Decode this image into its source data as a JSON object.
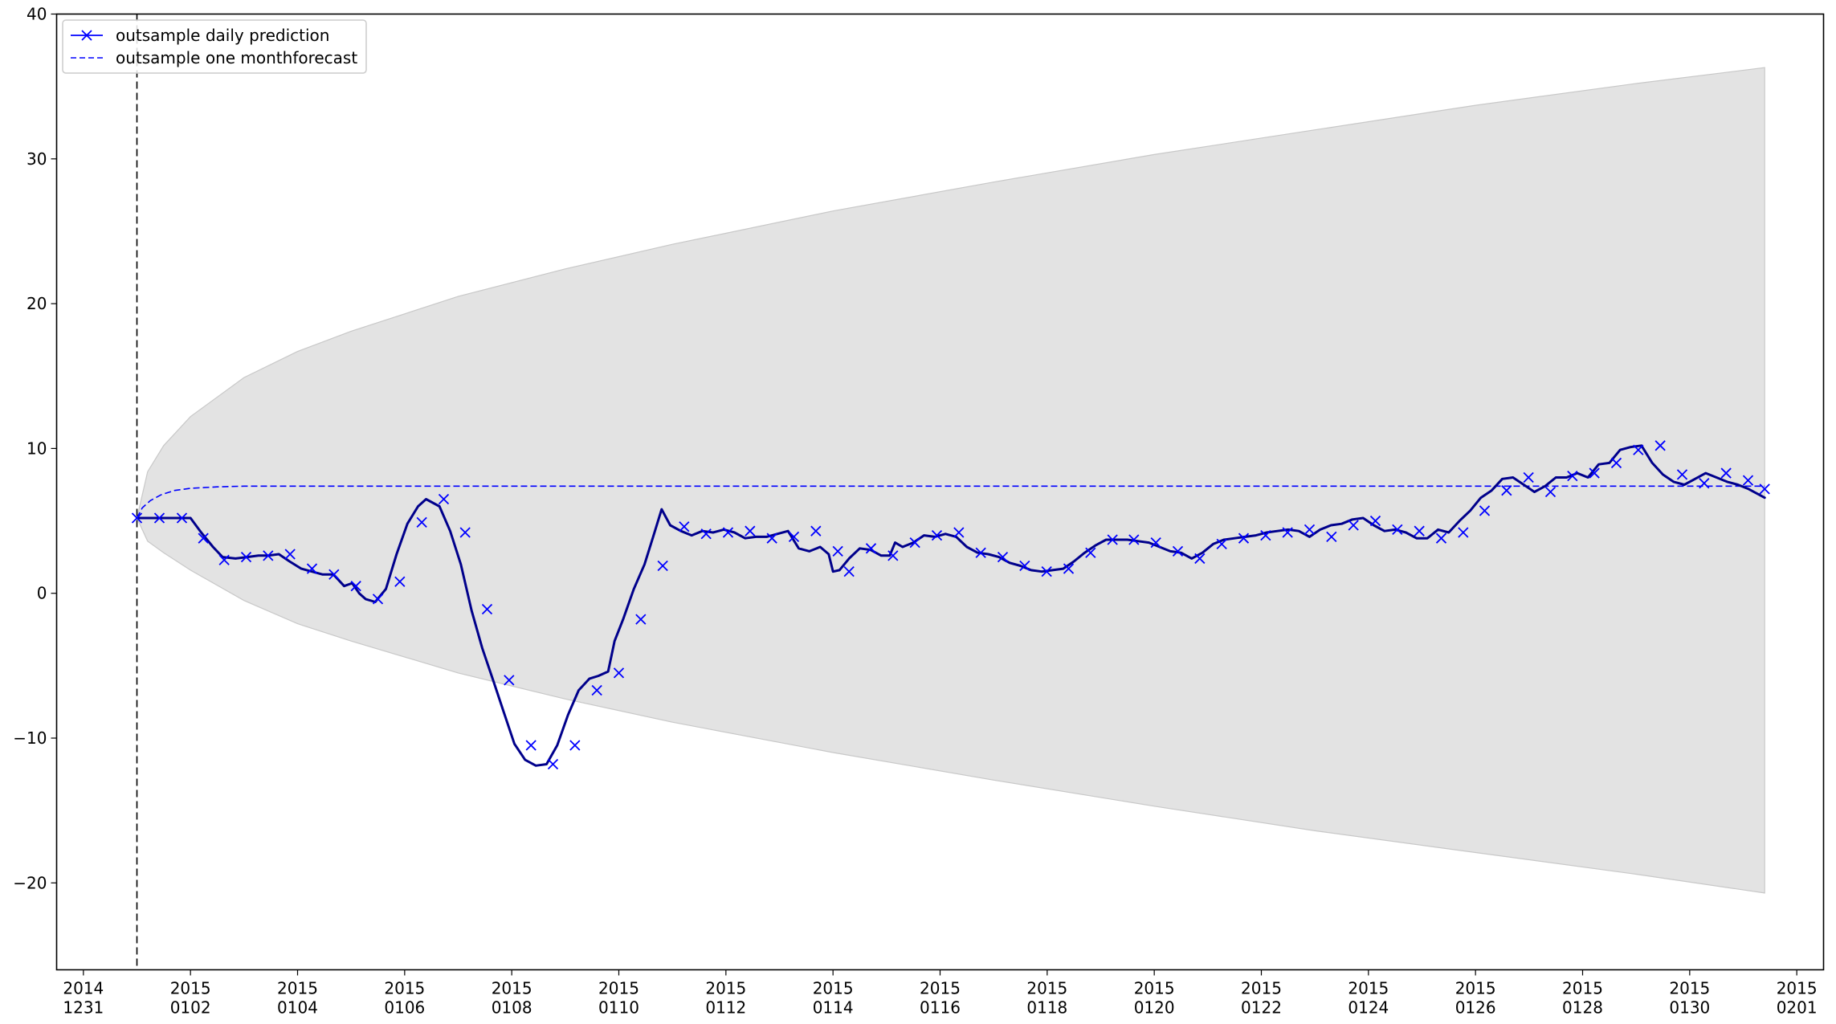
{
  "chart_data": {
    "type": "line",
    "title": "",
    "xlabel": "",
    "ylabel": "",
    "xlim": [
      -0.5,
      32.5
    ],
    "ylim": [
      -26,
      40
    ],
    "grid": false,
    "legend_placement": "top-left",
    "colors": {
      "prediction": "#0000ff",
      "prediction_line": "#00008b",
      "forecast": "#0000ff",
      "band_fill": "#e3e3e3",
      "band_edge": "#c8c8c8",
      "vline": "#000000"
    },
    "x_ticks": [
      {
        "day": 0,
        "label": [
          "2014",
          "1231"
        ]
      },
      {
        "day": 2,
        "label": [
          "2015",
          "0102"
        ]
      },
      {
        "day": 4,
        "label": [
          "2015",
          "0104"
        ]
      },
      {
        "day": 6,
        "label": [
          "2015",
          "0106"
        ]
      },
      {
        "day": 8,
        "label": [
          "2015",
          "0108"
        ]
      },
      {
        "day": 10,
        "label": [
          "2015",
          "0110"
        ]
      },
      {
        "day": 12,
        "label": [
          "2015",
          "0112"
        ]
      },
      {
        "day": 14,
        "label": [
          "2015",
          "0114"
        ]
      },
      {
        "day": 16,
        "label": [
          "2015",
          "0116"
        ]
      },
      {
        "day": 18,
        "label": [
          "2015",
          "0118"
        ]
      },
      {
        "day": 20,
        "label": [
          "2015",
          "0120"
        ]
      },
      {
        "day": 22,
        "label": [
          "2015",
          "0122"
        ]
      },
      {
        "day": 24,
        "label": [
          "2015",
          "0124"
        ]
      },
      {
        "day": 26,
        "label": [
          "2015",
          "0126"
        ]
      },
      {
        "day": 28,
        "label": [
          "2015",
          "0128"
        ]
      },
      {
        "day": 30,
        "label": [
          "2015",
          "0130"
        ]
      },
      {
        "day": 32,
        "label": [
          "2015",
          "0201"
        ]
      }
    ],
    "y_ticks": [
      -20,
      -10,
      0,
      10,
      20,
      30,
      40
    ],
    "y_tick_labels": [
      "−20",
      "−10",
      "0",
      "10",
      "20",
      "30",
      "40"
    ],
    "vline_x": 1.0,
    "series": [
      {
        "name": "outsample daily prediction",
        "style": "line-x-marker",
        "points": [
          [
            1.0,
            5.2
          ],
          [
            1.2,
            5.2
          ],
          [
            1.42,
            5.2
          ],
          [
            1.62,
            5.2
          ],
          [
            1.84,
            5.2
          ],
          [
            2.0,
            5.2
          ],
          [
            2.2,
            4.2
          ],
          [
            2.42,
            3.2
          ],
          [
            2.6,
            2.5
          ],
          [
            2.84,
            2.4
          ],
          [
            3.06,
            2.5
          ],
          [
            3.27,
            2.6
          ],
          [
            3.45,
            2.6
          ],
          [
            3.65,
            2.7
          ],
          [
            3.85,
            2.2
          ],
          [
            4.07,
            1.7
          ],
          [
            4.27,
            1.5
          ],
          [
            4.47,
            1.3
          ],
          [
            4.67,
            1.3
          ],
          [
            4.87,
            0.5
          ],
          [
            5.02,
            0.7
          ],
          [
            5.15,
            0.0
          ],
          [
            5.27,
            -0.4
          ],
          [
            5.45,
            -0.6
          ],
          [
            5.65,
            0.3
          ],
          [
            5.85,
            2.7
          ],
          [
            6.05,
            4.8
          ],
          [
            6.25,
            6.0
          ],
          [
            6.4,
            6.5
          ],
          [
            6.65,
            6.0
          ],
          [
            6.85,
            4.3
          ],
          [
            7.05,
            2.0
          ],
          [
            7.25,
            -1.2
          ],
          [
            7.45,
            -3.8
          ],
          [
            7.67,
            -6.2
          ],
          [
            7.85,
            -8.2
          ],
          [
            8.05,
            -10.4
          ],
          [
            8.25,
            -11.5
          ],
          [
            8.45,
            -11.9
          ],
          [
            8.65,
            -11.8
          ],
          [
            8.85,
            -10.5
          ],
          [
            9.05,
            -8.4
          ],
          [
            9.25,
            -6.7
          ],
          [
            9.45,
            -5.9
          ],
          [
            9.62,
            -5.7
          ],
          [
            9.8,
            -5.4
          ],
          [
            9.92,
            -3.3
          ],
          [
            10.08,
            -1.8
          ],
          [
            10.28,
            0.3
          ],
          [
            10.48,
            2.0
          ],
          [
            10.65,
            4.0
          ],
          [
            10.8,
            5.8
          ],
          [
            10.96,
            4.7
          ],
          [
            11.16,
            4.3
          ],
          [
            11.36,
            4.0
          ],
          [
            11.56,
            4.3
          ],
          [
            11.76,
            4.2
          ],
          [
            11.96,
            4.4
          ],
          [
            12.16,
            4.2
          ],
          [
            12.36,
            3.8
          ],
          [
            12.56,
            3.9
          ],
          [
            12.76,
            3.9
          ],
          [
            12.96,
            4.1
          ],
          [
            13.16,
            4.3
          ],
          [
            13.36,
            3.1
          ],
          [
            13.56,
            2.9
          ],
          [
            13.76,
            3.2
          ],
          [
            13.92,
            2.7
          ],
          [
            14.0,
            1.5
          ],
          [
            14.12,
            1.6
          ],
          [
            14.3,
            2.4
          ],
          [
            14.5,
            3.1
          ],
          [
            14.7,
            3.0
          ],
          [
            14.9,
            2.6
          ],
          [
            15.06,
            2.6
          ],
          [
            15.16,
            3.5
          ],
          [
            15.3,
            3.2
          ],
          [
            15.5,
            3.5
          ],
          [
            15.7,
            4.0
          ],
          [
            15.9,
            3.9
          ],
          [
            16.1,
            4.1
          ],
          [
            16.3,
            3.9
          ],
          [
            16.5,
            3.2
          ],
          [
            16.7,
            2.8
          ],
          [
            16.9,
            2.7
          ],
          [
            17.1,
            2.5
          ],
          [
            17.3,
            2.1
          ],
          [
            17.5,
            1.9
          ],
          [
            17.7,
            1.6
          ],
          [
            17.9,
            1.5
          ],
          [
            18.1,
            1.6
          ],
          [
            18.3,
            1.7
          ],
          [
            18.5,
            2.2
          ],
          [
            18.7,
            2.8
          ],
          [
            18.9,
            3.3
          ],
          [
            19.1,
            3.7
          ],
          [
            19.3,
            3.7
          ],
          [
            19.5,
            3.7
          ],
          [
            19.7,
            3.6
          ],
          [
            19.9,
            3.5
          ],
          [
            20.1,
            3.2
          ],
          [
            20.3,
            2.9
          ],
          [
            20.5,
            2.8
          ],
          [
            20.7,
            2.4
          ],
          [
            20.9,
            2.8
          ],
          [
            21.1,
            3.4
          ],
          [
            21.3,
            3.7
          ],
          [
            21.5,
            3.8
          ],
          [
            21.7,
            3.9
          ],
          [
            21.9,
            4.0
          ],
          [
            22.1,
            4.2
          ],
          [
            22.3,
            4.3
          ],
          [
            22.5,
            4.4
          ],
          [
            22.7,
            4.3
          ],
          [
            22.9,
            3.9
          ],
          [
            23.1,
            4.4
          ],
          [
            23.3,
            4.7
          ],
          [
            23.5,
            4.8
          ],
          [
            23.7,
            5.1
          ],
          [
            23.9,
            5.2
          ],
          [
            24.1,
            4.7
          ],
          [
            24.3,
            4.3
          ],
          [
            24.5,
            4.4
          ],
          [
            24.7,
            4.2
          ],
          [
            24.9,
            3.8
          ],
          [
            25.1,
            3.8
          ],
          [
            25.3,
            4.4
          ],
          [
            25.5,
            4.2
          ],
          [
            25.7,
            5.0
          ],
          [
            25.9,
            5.7
          ],
          [
            26.1,
            6.6
          ],
          [
            26.3,
            7.1
          ],
          [
            26.5,
            7.9
          ],
          [
            26.7,
            8.0
          ],
          [
            26.9,
            7.5
          ],
          [
            27.1,
            7.0
          ],
          [
            27.3,
            7.4
          ],
          [
            27.5,
            8.0
          ],
          [
            27.7,
            8.0
          ],
          [
            27.9,
            8.3
          ],
          [
            28.1,
            8.0
          ],
          [
            28.3,
            8.9
          ],
          [
            28.5,
            9.0
          ],
          [
            28.7,
            9.9
          ],
          [
            28.9,
            10.1
          ],
          [
            29.1,
            10.2
          ],
          [
            29.3,
            9.0
          ],
          [
            29.5,
            8.2
          ],
          [
            29.7,
            7.7
          ],
          [
            29.9,
            7.5
          ],
          [
            30.1,
            7.9
          ],
          [
            30.3,
            8.3
          ],
          [
            30.5,
            8.0
          ],
          [
            30.7,
            7.7
          ],
          [
            30.9,
            7.5
          ],
          [
            31.1,
            7.2
          ],
          [
            31.3,
            6.8
          ],
          [
            31.4,
            6.6
          ]
        ],
        "marker_points": [
          [
            1.0,
            5.2
          ],
          [
            1.42,
            5.2
          ],
          [
            1.84,
            5.2
          ],
          [
            2.24,
            3.8
          ],
          [
            2.63,
            2.3
          ],
          [
            3.04,
            2.5
          ],
          [
            3.45,
            2.6
          ],
          [
            3.86,
            2.7
          ],
          [
            4.27,
            1.7
          ],
          [
            4.68,
            1.3
          ],
          [
            5.09,
            0.5
          ],
          [
            5.5,
            -0.4
          ],
          [
            5.91,
            0.8
          ],
          [
            6.32,
            4.9
          ],
          [
            6.73,
            6.5
          ],
          [
            7.13,
            4.2
          ],
          [
            7.54,
            -1.1
          ],
          [
            7.95,
            -6.0
          ],
          [
            8.36,
            -10.5
          ],
          [
            8.77,
            -11.8
          ],
          [
            9.18,
            -10.5
          ],
          [
            9.59,
            -6.7
          ],
          [
            10.0,
            -5.5
          ],
          [
            10.41,
            -1.8
          ],
          [
            10.82,
            1.9
          ],
          [
            11.22,
            4.6
          ],
          [
            11.63,
            4.1
          ],
          [
            12.04,
            4.2
          ],
          [
            12.45,
            4.3
          ],
          [
            12.86,
            3.8
          ],
          [
            13.27,
            3.9
          ],
          [
            13.68,
            4.3
          ],
          [
            14.09,
            2.9
          ],
          [
            14.3,
            1.5
          ],
          [
            14.71,
            3.1
          ],
          [
            15.12,
            2.6
          ],
          [
            15.53,
            3.5
          ],
          [
            15.94,
            4.0
          ],
          [
            16.35,
            4.2
          ],
          [
            16.76,
            2.8
          ],
          [
            17.17,
            2.5
          ],
          [
            17.58,
            1.9
          ],
          [
            17.99,
            1.5
          ],
          [
            18.4,
            1.7
          ],
          [
            18.81,
            2.8
          ],
          [
            19.22,
            3.7
          ],
          [
            19.62,
            3.7
          ],
          [
            20.03,
            3.5
          ],
          [
            20.44,
            2.9
          ],
          [
            20.85,
            2.4
          ],
          [
            21.26,
            3.4
          ],
          [
            21.67,
            3.8
          ],
          [
            22.08,
            4.0
          ],
          [
            22.49,
            4.2
          ],
          [
            22.9,
            4.4
          ],
          [
            23.31,
            3.9
          ],
          [
            23.72,
            4.7
          ],
          [
            24.13,
            5.0
          ],
          [
            24.54,
            4.4
          ],
          [
            24.95,
            4.3
          ],
          [
            25.36,
            3.8
          ],
          [
            25.77,
            4.2
          ],
          [
            26.17,
            5.7
          ],
          [
            26.58,
            7.1
          ],
          [
            26.99,
            8.0
          ],
          [
            27.4,
            7.0
          ],
          [
            27.81,
            8.1
          ],
          [
            28.22,
            8.3
          ],
          [
            28.63,
            9.0
          ],
          [
            29.04,
            9.9
          ],
          [
            29.45,
            10.2
          ],
          [
            29.86,
            8.2
          ],
          [
            30.27,
            7.6
          ],
          [
            30.68,
            8.3
          ],
          [
            31.09,
            7.8
          ],
          [
            31.4,
            7.2
          ]
        ]
      },
      {
        "name": "outsample one monthforecast",
        "style": "dashed",
        "points": [
          [
            1.0,
            5.2
          ],
          [
            1.1,
            5.9
          ],
          [
            1.25,
            6.4
          ],
          [
            1.45,
            6.8
          ],
          [
            1.7,
            7.1
          ],
          [
            2.0,
            7.25
          ],
          [
            2.5,
            7.35
          ],
          [
            3.0,
            7.4
          ],
          [
            5.0,
            7.4
          ],
          [
            10.0,
            7.4
          ],
          [
            15.0,
            7.4
          ],
          [
            20.0,
            7.4
          ],
          [
            25.0,
            7.4
          ],
          [
            31.4,
            7.4
          ]
        ]
      }
    ],
    "confidence_band": {
      "x": [
        1.0,
        1.2,
        1.5,
        2.0,
        3.0,
        4.0,
        5.0,
        7.0,
        9.0,
        11.0,
        14.0,
        17.0,
        20.0,
        23.0,
        26.0,
        29.0,
        31.4
      ],
      "upper": [
        5.2,
        8.4,
        10.2,
        12.2,
        14.9,
        16.7,
        18.1,
        20.5,
        22.4,
        24.1,
        26.4,
        28.4,
        30.3,
        32.0,
        33.7,
        35.2,
        36.3
      ],
      "lower": [
        5.2,
        3.6,
        2.8,
        1.6,
        -0.5,
        -2.1,
        -3.3,
        -5.5,
        -7.3,
        -8.9,
        -11.0,
        -12.9,
        -14.7,
        -16.4,
        -17.9,
        -19.4,
        -20.7
      ]
    },
    "legend": [
      {
        "label": "outsample daily prediction",
        "style": "line-x-marker"
      },
      {
        "label": "outsample one monthforecast",
        "style": "dashed"
      }
    ]
  }
}
